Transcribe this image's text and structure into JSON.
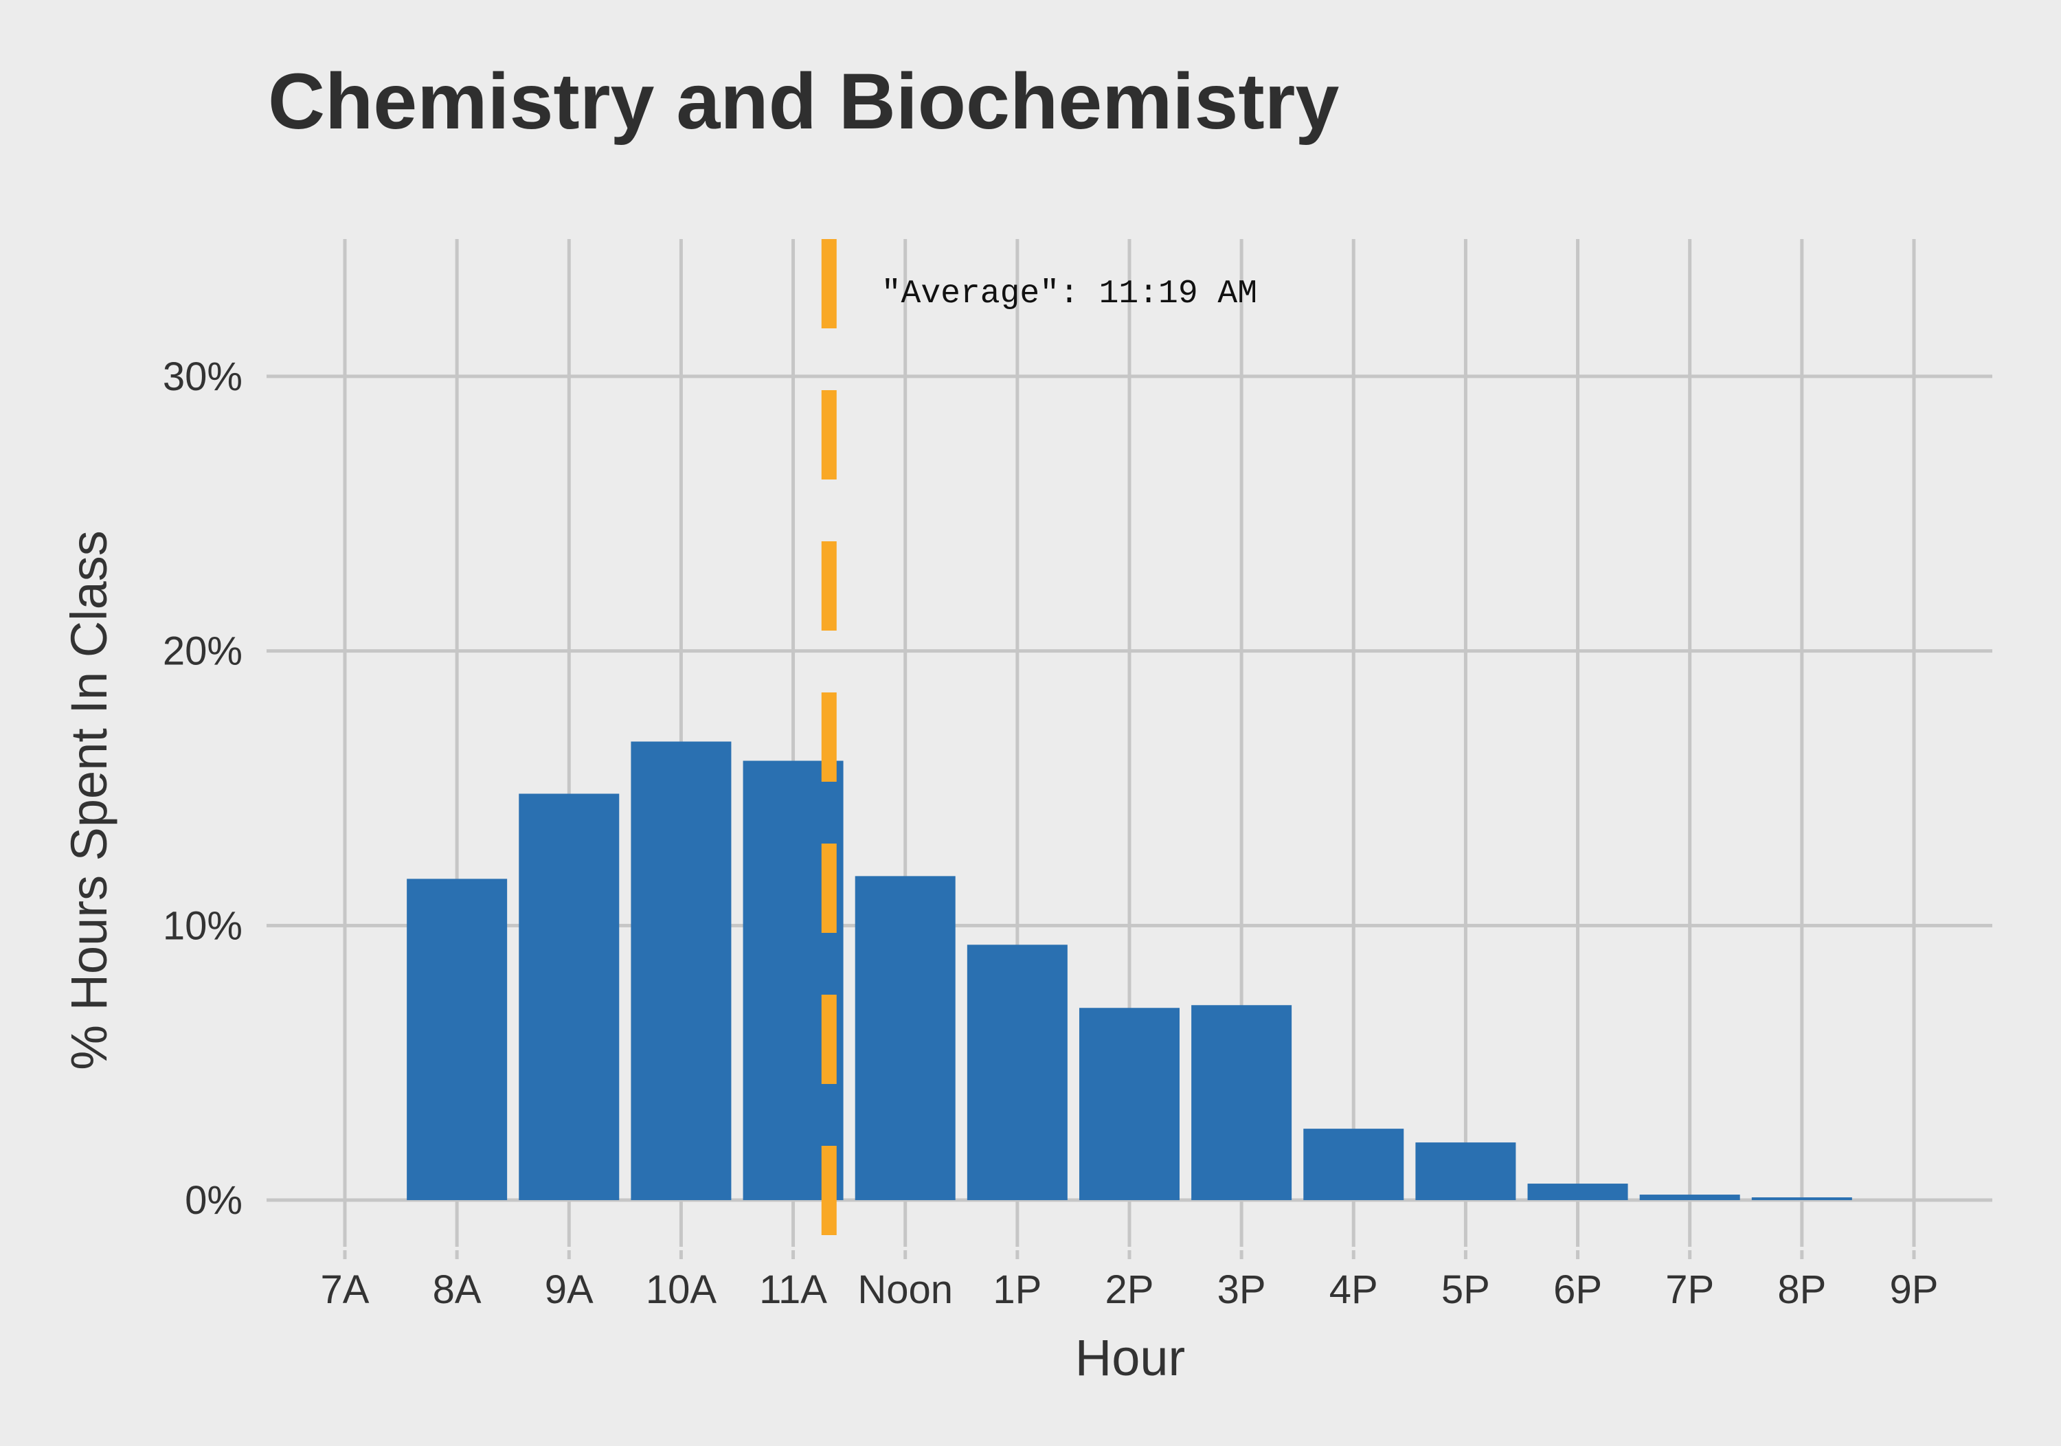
{
  "chart_data": {
    "type": "bar",
    "title": "Chemistry and Biochemistry",
    "xlabel": "Hour",
    "ylabel": "% Hours Spent In Class",
    "categories": [
      "7A",
      "8A",
      "9A",
      "10A",
      "11A",
      "Noon",
      "1P",
      "2P",
      "3P",
      "4P",
      "5P",
      "6P",
      "7P",
      "8P",
      "9P"
    ],
    "values": [
      0,
      11.7,
      14.8,
      16.7,
      16.0,
      11.8,
      9.3,
      7.0,
      7.1,
      2.6,
      2.1,
      0.6,
      0.2,
      0.1,
      0
    ],
    "y_ticks": [
      0,
      10,
      20,
      30
    ],
    "y_tick_labels": [
      "0%",
      "10%",
      "20%",
      "30%"
    ],
    "ylim": [
      -1.7,
      35
    ],
    "grid": true,
    "bar_color": "#2a70b1",
    "average": {
      "hour": 11.32,
      "label": "\"Average\": 11:19 AM",
      "color": "#f9a825"
    },
    "colors": {
      "background": "#ececec",
      "grid": "#c6c6c6",
      "text": "#333333",
      "title": "#2f2f2f"
    }
  }
}
